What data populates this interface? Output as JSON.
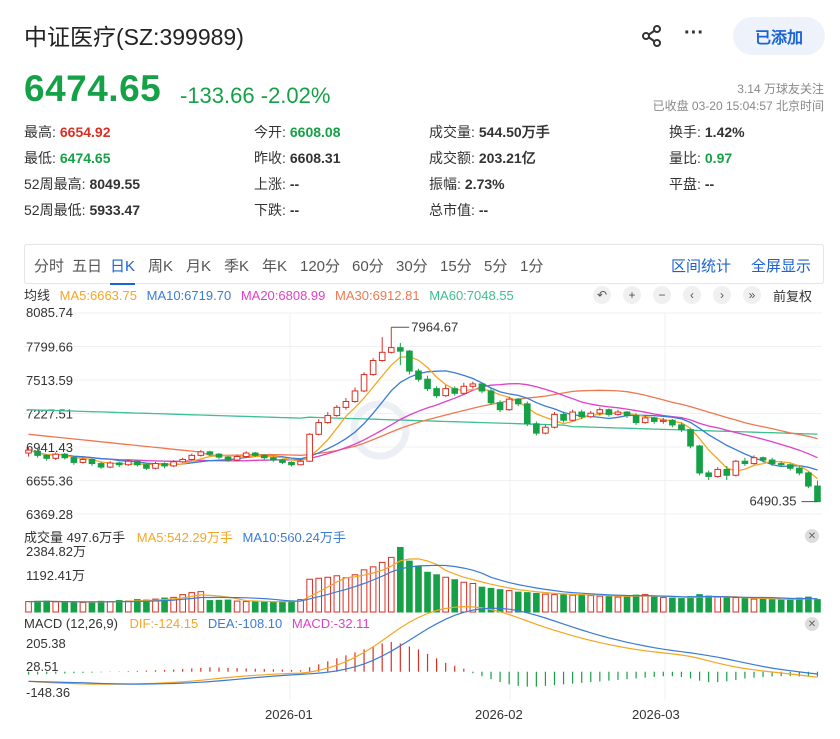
{
  "header": {
    "title": "中证医疗(SZ:399989)",
    "follow_label": "已添加",
    "price": "6474.65",
    "change": "-133.66",
    "change_pct": "-2.02%",
    "fans": "3.14 万球友关注",
    "status": "已收盘 03-20 15:04:57 北京时间"
  },
  "stats": [
    {
      "label": "最高:",
      "value": "6654.92",
      "color": "red"
    },
    {
      "label": "今开:",
      "value": "6608.08",
      "color": "green"
    },
    {
      "label": "成交量:",
      "value": "544.50万手",
      "color": ""
    },
    {
      "label": "换手:",
      "value": "1.42%",
      "color": ""
    },
    {
      "label": "最低:",
      "value": "6474.65",
      "color": "green"
    },
    {
      "label": "昨收:",
      "value": "6608.31",
      "color": ""
    },
    {
      "label": "成交额:",
      "value": "203.21亿",
      "color": ""
    },
    {
      "label": "量比:",
      "value": "0.97",
      "color": "green"
    },
    {
      "label": "52周最高:",
      "value": "8049.55",
      "color": ""
    },
    {
      "label": "上涨:",
      "value": "--",
      "color": ""
    },
    {
      "label": "振幅:",
      "value": "2.73%",
      "color": ""
    },
    {
      "label": "平盘:",
      "value": "--",
      "color": ""
    },
    {
      "label": "52周最低:",
      "value": "5933.47",
      "color": ""
    },
    {
      "label": "下跌:",
      "value": "--",
      "color": ""
    },
    {
      "label": "总市值:",
      "value": "--",
      "color": ""
    }
  ],
  "tabs": [
    "分时",
    "五日",
    "日K",
    "周K",
    "月K",
    "季K",
    "年K",
    "120分",
    "60分",
    "30分",
    "15分",
    "5分",
    "1分"
  ],
  "active_tab": "日K",
  "tab_right": [
    "区间统计",
    "全屏显示"
  ],
  "ma_legend": {
    "label": "均线",
    "ma5": "MA5:6663.75",
    "ma10": "MA10:6719.70",
    "ma20": "MA20:6808.99",
    "ma30": "MA30:6912.81",
    "ma60": "MA60:7048.55"
  },
  "fuquan": "前复权",
  "vol_legend": {
    "label": "成交量 497.6万手",
    "ma5": "MA5:542.29万手",
    "ma10": "MA10:560.24万手"
  },
  "macd_legend": {
    "label": "MACD (12,26,9)",
    "dif": "DIF:-124.15",
    "dea": "DEA:-108.10",
    "macd": "MACD:-32.11"
  },
  "colors": {
    "up": "#d93025",
    "down": "#16a047",
    "ma5": "#f5a623",
    "ma10": "#3a7bd5",
    "ma20": "#e040c8",
    "ma30": "#f07850",
    "ma60": "#3fbf8f"
  },
  "chart_data": {
    "type": "candlestick",
    "price_ticks": [
      "8085.74",
      "7799.66",
      "7513.59",
      "7227.51",
      "6941.43",
      "6655.36",
      "6369.28"
    ],
    "price_range": [
      6369.28,
      8085.74
    ],
    "volume_ticks": [
      "2384.82万",
      "1192.41万"
    ],
    "volume_range": [
      0,
      2700
    ],
    "macd_ticks": [
      "205.38",
      "28.51",
      "-148.36"
    ],
    "macd_range": [
      -190,
      240
    ],
    "x_labels": [
      "2026-01",
      "2026-02",
      "2026-03"
    ],
    "max_marker": "7964.67",
    "min_marker": "6490.35",
    "candles": [
      [
        6890,
        6915,
        6860,
        6940
      ],
      [
        6905,
        6870,
        6850,
        6925
      ],
      [
        6870,
        6845,
        6825,
        6880
      ],
      [
        6845,
        6880,
        6830,
        6895
      ],
      [
        6880,
        6850,
        6835,
        6890
      ],
      [
        6850,
        6810,
        6790,
        6860
      ],
      [
        6810,
        6835,
        6800,
        6850
      ],
      [
        6835,
        6800,
        6780,
        6845
      ],
      [
        6800,
        6770,
        6755,
        6815
      ],
      [
        6770,
        6805,
        6760,
        6820
      ],
      [
        6805,
        6790,
        6770,
        6815
      ],
      [
        6790,
        6820,
        6780,
        6835
      ],
      [
        6820,
        6790,
        6775,
        6830
      ],
      [
        6790,
        6760,
        6745,
        6800
      ],
      [
        6760,
        6800,
        6750,
        6815
      ],
      [
        6800,
        6780,
        6760,
        6810
      ],
      [
        6780,
        6815,
        6770,
        6830
      ],
      [
        6815,
        6835,
        6805,
        6850
      ],
      [
        6835,
        6870,
        6825,
        6885
      ],
      [
        6870,
        6900,
        6860,
        6915
      ],
      [
        6900,
        6880,
        6865,
        6910
      ],
      [
        6880,
        6855,
        6840,
        6890
      ],
      [
        6855,
        6830,
        6815,
        6865
      ],
      [
        6830,
        6860,
        6820,
        6875
      ],
      [
        6860,
        6890,
        6850,
        6905
      ],
      [
        6890,
        6870,
        6855,
        6900
      ],
      [
        6870,
        6850,
        6835,
        6880
      ],
      [
        6850,
        6830,
        6815,
        6860
      ],
      [
        6830,
        6810,
        6795,
        6840
      ],
      [
        6810,
        6790,
        6775,
        6820
      ],
      [
        6790,
        6820,
        6785,
        6835
      ],
      [
        6820,
        7050,
        6815,
        7060
      ],
      [
        7050,
        7150,
        7040,
        7180
      ],
      [
        7150,
        7210,
        7140,
        7240
      ],
      [
        7210,
        7280,
        7200,
        7300
      ],
      [
        7280,
        7330,
        7260,
        7360
      ],
      [
        7330,
        7420,
        7320,
        7450
      ],
      [
        7420,
        7560,
        7410,
        7580
      ],
      [
        7560,
        7680,
        7550,
        7700
      ],
      [
        7680,
        7750,
        7670,
        7880
      ],
      [
        7750,
        7790,
        7740,
        7964
      ],
      [
        7790,
        7760,
        7640,
        7830
      ],
      [
        7760,
        7590,
        7560,
        7770
      ],
      [
        7590,
        7520,
        7500,
        7610
      ],
      [
        7520,
        7440,
        7420,
        7550
      ],
      [
        7440,
        7380,
        7360,
        7460
      ],
      [
        7380,
        7440,
        7370,
        7470
      ],
      [
        7440,
        7400,
        7380,
        7460
      ],
      [
        7400,
        7460,
        7390,
        7490
      ],
      [
        7460,
        7480,
        7440,
        7500
      ],
      [
        7480,
        7420,
        7400,
        7490
      ],
      [
        7420,
        7320,
        7300,
        7440
      ],
      [
        7320,
        7260,
        7240,
        7340
      ],
      [
        7260,
        7350,
        7250,
        7370
      ],
      [
        7350,
        7310,
        7290,
        7360
      ],
      [
        7310,
        7140,
        7120,
        7330
      ],
      [
        7140,
        7060,
        7040,
        7160
      ],
      [
        7060,
        7110,
        7050,
        7130
      ],
      [
        7110,
        7220,
        7100,
        7240
      ],
      [
        7220,
        7170,
        7150,
        7240
      ],
      [
        7170,
        7240,
        7160,
        7260
      ],
      [
        7240,
        7200,
        7180,
        7260
      ],
      [
        7200,
        7230,
        7190,
        7250
      ],
      [
        7230,
        7260,
        7210,
        7280
      ],
      [
        7260,
        7220,
        7200,
        7270
      ],
      [
        7220,
        7240,
        7210,
        7260
      ],
      [
        7240,
        7210,
        7190,
        7250
      ],
      [
        7210,
        7150,
        7130,
        7230
      ],
      [
        7150,
        7190,
        7140,
        7210
      ],
      [
        7190,
        7160,
        7140,
        7200
      ],
      [
        7160,
        7170,
        7140,
        7190
      ],
      [
        7170,
        7130,
        7110,
        7180
      ],
      [
        7130,
        7090,
        7070,
        7150
      ],
      [
        7090,
        6950,
        6930,
        7100
      ],
      [
        6950,
        6720,
        6700,
        6960
      ],
      [
        6720,
        6690,
        6660,
        6740
      ],
      [
        6690,
        6750,
        6680,
        6770
      ],
      [
        6750,
        6700,
        6660,
        6780
      ],
      [
        6700,
        6820,
        6690,
        6830
      ],
      [
        6820,
        6800,
        6780,
        6850
      ],
      [
        6800,
        6850,
        6790,
        6870
      ],
      [
        6850,
        6830,
        6810,
        6860
      ],
      [
        6830,
        6800,
        6780,
        6850
      ],
      [
        6800,
        6790,
        6770,
        6820
      ],
      [
        6790,
        6760,
        6740,
        6800
      ],
      [
        6760,
        6720,
        6700,
        6780
      ],
      [
        6720,
        6608,
        6590,
        6730
      ],
      [
        6608,
        6475,
        6475,
        6655
      ]
    ],
    "volumes": [
      420,
      430,
      440,
      410,
      390,
      400,
      380,
      410,
      430,
      420,
      460,
      440,
      500,
      480,
      520,
      560,
      590,
      700,
      780,
      820,
      460,
      470,
      480,
      440,
      420,
      410,
      400,
      420,
      430,
      450,
      500,
      1320,
      1360,
      1400,
      1460,
      1380,
      1500,
      1700,
      1820,
      2000,
      2200,
      2600,
      2050,
      1850,
      1600,
      1500,
      1400,
      1300,
      1200,
      1150,
      1000,
      950,
      900,
      860,
      800,
      780,
      750,
      720,
      700,
      690,
      680,
      700,
      660,
      640,
      620,
      600,
      640,
      680,
      700,
      600,
      580,
      560,
      540,
      620,
      700,
      640,
      600,
      560,
      580,
      540,
      520,
      540,
      500,
      480,
      520,
      560,
      600,
      500
    ],
    "macd_hist": [
      -20,
      -18,
      -16,
      -14,
      -12,
      -10,
      -8,
      -6,
      -4,
      -2,
      2,
      4,
      6,
      8,
      10,
      12,
      14,
      18,
      22,
      26,
      30,
      28,
      26,
      24,
      22,
      20,
      18,
      16,
      14,
      12,
      10,
      30,
      50,
      70,
      90,
      110,
      130,
      150,
      170,
      190,
      200,
      190,
      170,
      150,
      120,
      90,
      60,
      40,
      20,
      -10,
      -30,
      -50,
      -70,
      -85,
      -95,
      -100,
      -100,
      -95,
      -90,
      -85,
      -80,
      -75,
      -70,
      -65,
      -60,
      -55,
      -50,
      -45,
      -40,
      -35,
      -30,
      -30,
      -35,
      -45,
      -60,
      -70,
      -70,
      -65,
      -55,
      -45,
      -40,
      -36,
      -32,
      -30,
      -30,
      -32,
      -34,
      -32
    ]
  }
}
